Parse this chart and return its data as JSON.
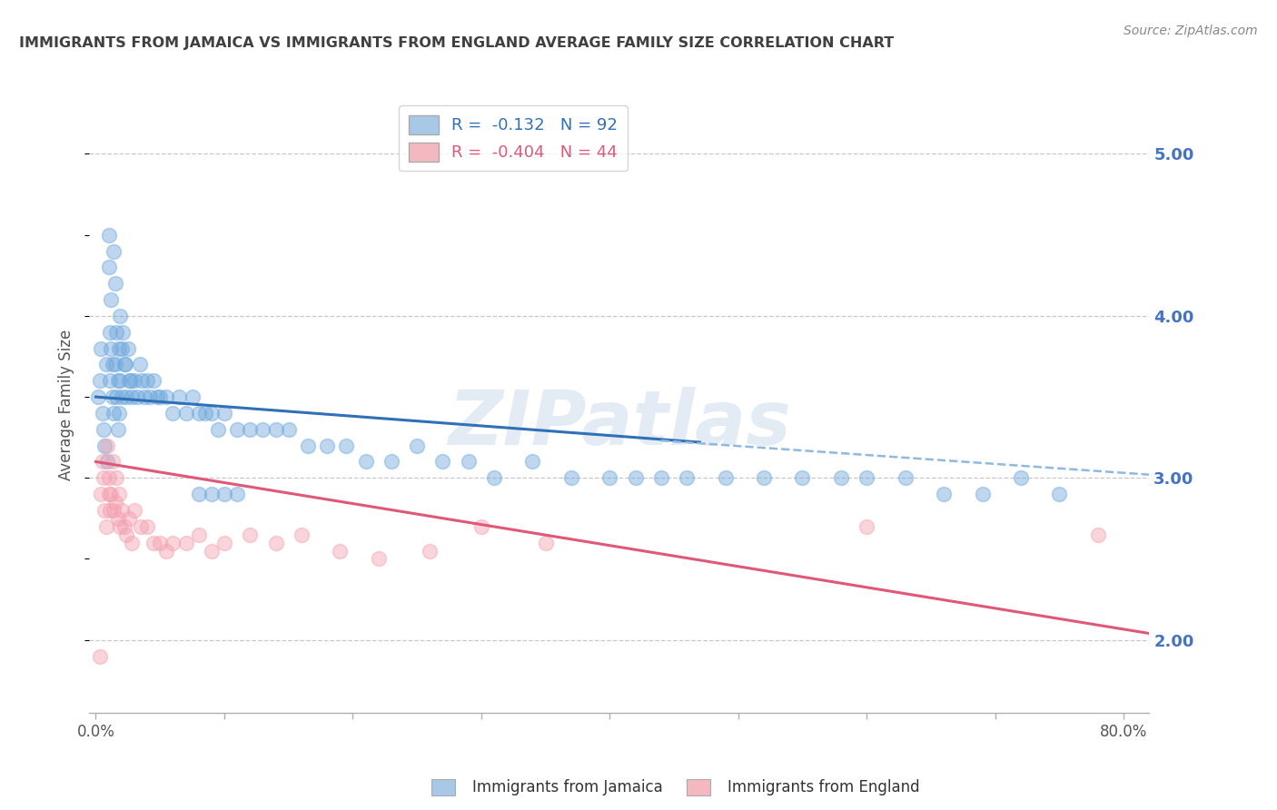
{
  "title": "IMMIGRANTS FROM JAMAICA VS IMMIGRANTS FROM ENGLAND AVERAGE FAMILY SIZE CORRELATION CHART",
  "source": "Source: ZipAtlas.com",
  "ylabel": "Average Family Size",
  "yticks_right": [
    2.0,
    3.0,
    4.0,
    5.0
  ],
  "xticks_bottom": [
    0.0,
    0.1,
    0.2,
    0.3,
    0.4,
    0.5,
    0.6,
    0.7,
    0.8
  ],
  "xlim": [
    -0.005,
    0.82
  ],
  "ylim": [
    1.55,
    5.35
  ],
  "legend1_label": "R =  -0.132   N = 92",
  "legend2_label": "R =  -0.404   N = 44",
  "legend1_color": "#a8c8e8",
  "legend2_color": "#f4b8c0",
  "watermark": "ZIPatlas",
  "blue_scatter_color": "#6fa8dc",
  "pink_scatter_color": "#f4a0b0",
  "blue_line_color": "#3070b8",
  "pink_line_color": "#e05878",
  "dashed_line_color": "#90b8e0",
  "grid_color": "#c8c8c8",
  "title_color": "#404040",
  "right_axis_color": "#4472c4",
  "jamaica_x": [
    0.002,
    0.003,
    0.004,
    0.005,
    0.006,
    0.007,
    0.008,
    0.009,
    0.01,
    0.01,
    0.011,
    0.011,
    0.012,
    0.012,
    0.013,
    0.013,
    0.014,
    0.014,
    0.015,
    0.015,
    0.016,
    0.016,
    0.017,
    0.017,
    0.018,
    0.018,
    0.019,
    0.019,
    0.02,
    0.02,
    0.021,
    0.022,
    0.023,
    0.024,
    0.025,
    0.026,
    0.027,
    0.028,
    0.03,
    0.032,
    0.034,
    0.036,
    0.038,
    0.04,
    0.042,
    0.045,
    0.048,
    0.05,
    0.055,
    0.06,
    0.065,
    0.07,
    0.075,
    0.08,
    0.085,
    0.09,
    0.095,
    0.1,
    0.11,
    0.12,
    0.13,
    0.14,
    0.15,
    0.165,
    0.18,
    0.195,
    0.21,
    0.23,
    0.25,
    0.27,
    0.29,
    0.31,
    0.34,
    0.37,
    0.4,
    0.42,
    0.44,
    0.46,
    0.49,
    0.52,
    0.55,
    0.58,
    0.6,
    0.63,
    0.66,
    0.69,
    0.72,
    0.75,
    0.08,
    0.09,
    0.1,
    0.11
  ],
  "jamaica_y": [
    3.5,
    3.6,
    3.8,
    3.4,
    3.3,
    3.2,
    3.7,
    3.1,
    4.5,
    4.3,
    3.9,
    3.6,
    4.1,
    3.8,
    3.7,
    3.5,
    4.4,
    3.4,
    4.2,
    3.7,
    3.9,
    3.5,
    3.6,
    3.3,
    3.8,
    3.4,
    4.0,
    3.6,
    3.8,
    3.5,
    3.9,
    3.7,
    3.7,
    3.5,
    3.8,
    3.6,
    3.6,
    3.5,
    3.6,
    3.5,
    3.7,
    3.6,
    3.5,
    3.6,
    3.5,
    3.6,
    3.5,
    3.5,
    3.5,
    3.4,
    3.5,
    3.4,
    3.5,
    3.4,
    3.4,
    3.4,
    3.3,
    3.4,
    3.3,
    3.3,
    3.3,
    3.3,
    3.3,
    3.2,
    3.2,
    3.2,
    3.1,
    3.1,
    3.2,
    3.1,
    3.1,
    3.0,
    3.1,
    3.0,
    3.0,
    3.0,
    3.0,
    3.0,
    3.0,
    3.0,
    3.0,
    3.0,
    3.0,
    3.0,
    2.9,
    2.9,
    3.0,
    2.9,
    2.9,
    2.9,
    2.9,
    2.9
  ],
  "england_x": [
    0.003,
    0.004,
    0.005,
    0.006,
    0.007,
    0.008,
    0.009,
    0.01,
    0.01,
    0.011,
    0.012,
    0.013,
    0.014,
    0.015,
    0.016,
    0.017,
    0.018,
    0.019,
    0.02,
    0.022,
    0.024,
    0.026,
    0.028,
    0.03,
    0.035,
    0.04,
    0.045,
    0.05,
    0.055,
    0.06,
    0.07,
    0.08,
    0.09,
    0.1,
    0.12,
    0.14,
    0.16,
    0.19,
    0.22,
    0.26,
    0.3,
    0.35,
    0.6,
    0.78
  ],
  "england_y": [
    1.9,
    2.9,
    3.1,
    3.0,
    2.8,
    2.7,
    3.2,
    3.0,
    2.9,
    2.8,
    2.9,
    3.1,
    2.8,
    2.85,
    3.0,
    2.75,
    2.9,
    2.7,
    2.8,
    2.7,
    2.65,
    2.75,
    2.6,
    2.8,
    2.7,
    2.7,
    2.6,
    2.6,
    2.55,
    2.6,
    2.6,
    2.65,
    2.55,
    2.6,
    2.65,
    2.6,
    2.65,
    2.55,
    2.5,
    2.55,
    2.7,
    2.6,
    2.7,
    2.65
  ],
  "blue_line_x": [
    0.0,
    0.47
  ],
  "blue_line_y": [
    3.5,
    3.22
  ],
  "dashed_line_x": [
    0.44,
    0.82
  ],
  "dashed_line_y": [
    3.23,
    3.02
  ],
  "pink_line_x": [
    0.0,
    0.82
  ],
  "pink_line_y": [
    3.1,
    2.04
  ],
  "background_color": "#ffffff"
}
